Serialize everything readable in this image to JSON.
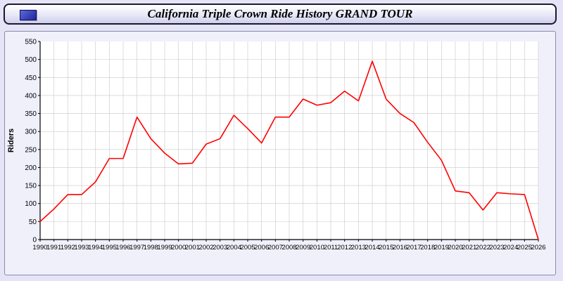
{
  "header": {
    "title": "California Triple Crown Ride History GRAND TOUR",
    "logo": "blue-box-logo",
    "logo_color": "#22259a"
  },
  "chart_data": {
    "type": "line",
    "title": "California Triple Crown Ride History GRAND TOUR",
    "xlabel": "",
    "ylabel": "Riders",
    "ylim": [
      0,
      550
    ],
    "ytick_step": 50,
    "grid": true,
    "legend": "none",
    "line_color": "#ff0000",
    "plot_background": "#ffffff",
    "grid_color": "#c8c8c8",
    "x": [
      1990,
      1991,
      1992,
      1993,
      1994,
      1995,
      1996,
      1997,
      1998,
      1999,
      2000,
      2001,
      2002,
      2003,
      2004,
      2005,
      2006,
      2007,
      2008,
      2009,
      2010,
      2011,
      2012,
      2013,
      2014,
      2015,
      2016,
      2017,
      2018,
      2019,
      2020,
      2021,
      2022,
      2023,
      2024,
      2025,
      2026
    ],
    "values": [
      50,
      85,
      125,
      125,
      160,
      225,
      225,
      340,
      280,
      240,
      210,
      212,
      265,
      280,
      345,
      308,
      268,
      340,
      340,
      390,
      373,
      380,
      412,
      385,
      495,
      390,
      350,
      325,
      270,
      220,
      135,
      130,
      82,
      130,
      127,
      125,
      0
    ]
  }
}
